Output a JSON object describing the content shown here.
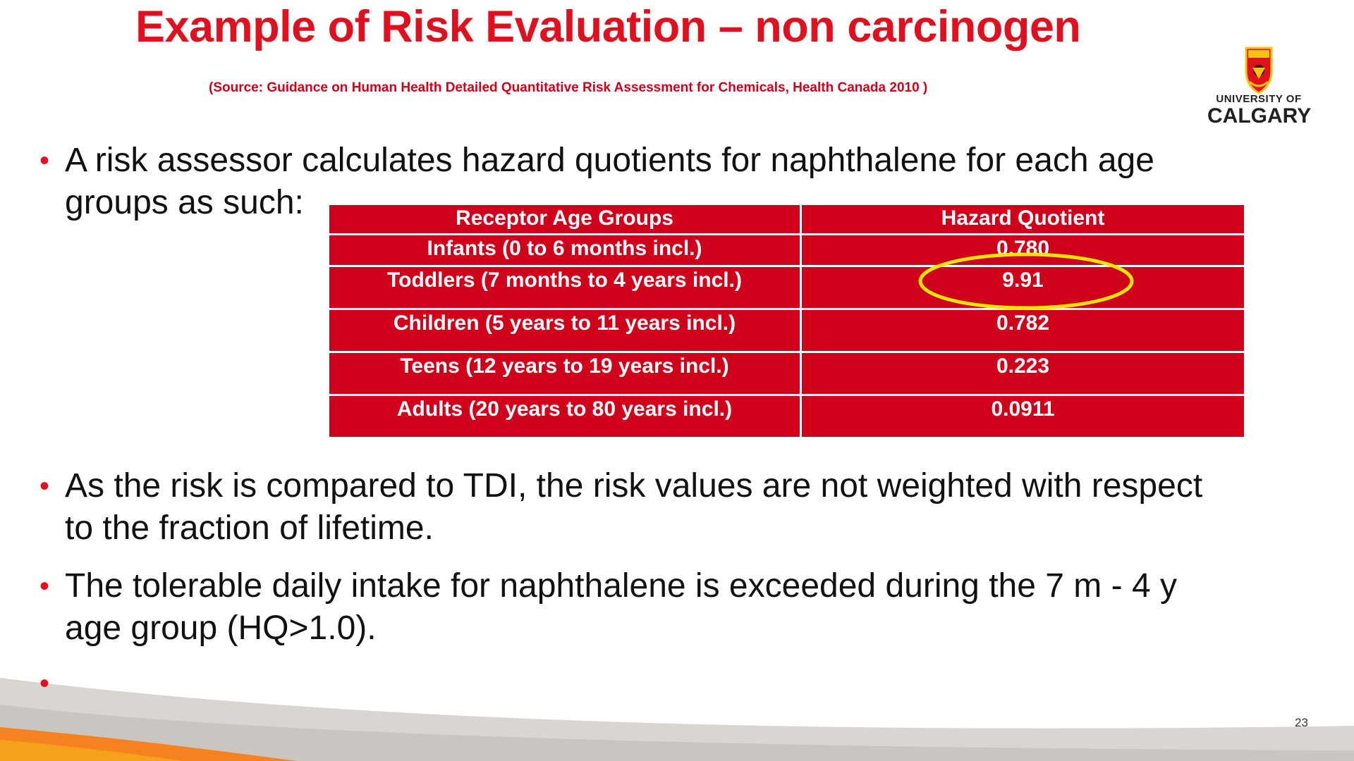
{
  "slide": {
    "title": "Example of Risk Evaluation – non carcinogen",
    "source": "(Source: Guidance on Human Health Detailed Quantitative Risk Assessment for Chemicals, Health Canada 2010 )",
    "page_number": "23"
  },
  "logo": {
    "line1": "UNIVERSITY OF",
    "line2": "CALGARY"
  },
  "bullets": [
    {
      "line1": "A risk assessor calculates hazard quotients for naphthalene for each age",
      "line2": "groups as such:"
    },
    {
      "line1": "As the risk is compared to TDI, the risk values are not weighted with respect",
      "line2": "to the fraction of lifetime."
    },
    {
      "line1": "The tolerable daily intake for naphthalene is exceeded during the 7 m - 4 y",
      "line2": "age group (HQ>1.0)."
    },
    {
      "line1": "",
      "line2": ""
    }
  ],
  "table": {
    "headers": [
      "Receptor Age Groups",
      "Hazard Quotient"
    ],
    "rows": [
      [
        "Infants (0 to 6 months incl.)",
        "0.780"
      ],
      [
        "Toddlers (7 months to 4 years incl.)",
        "9.91"
      ],
      [
        "Children (5 years to 11 years incl.)",
        "0.782"
      ],
      [
        "Teens (12 years to 19 years incl.)",
        "0.223"
      ],
      [
        "Adults (20 years to 80 years incl.)",
        "0.0911"
      ]
    ]
  },
  "colors": {
    "title": "#e0101f",
    "table_fill": "#d0011b",
    "highlight": "#f2e600",
    "footer_orange": "#f5821f",
    "footer_grey": "#d9d6d2"
  },
  "icons": {
    "logo": "university-crest-icon",
    "highlight": "yellow-ellipse-highlight"
  }
}
